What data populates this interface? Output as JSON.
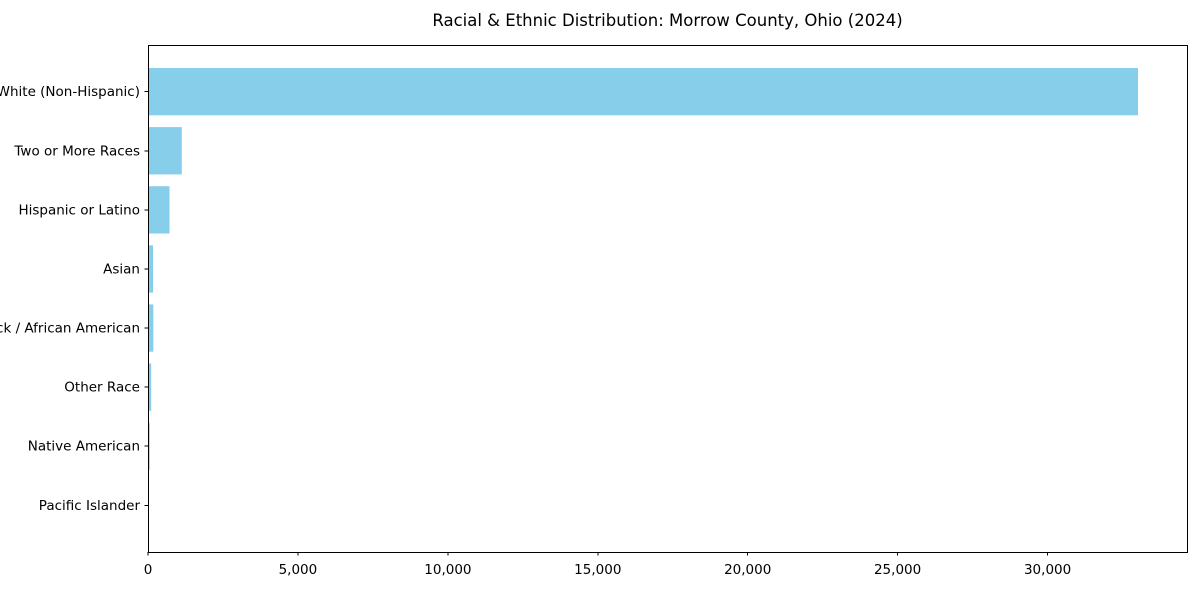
{
  "chart_data": {
    "type": "bar",
    "orientation": "horizontal",
    "title": "Racial & Ethnic Distribution: Morrow County, Ohio (2024)",
    "categories": [
      "White (Non-Hispanic)",
      "Two or More Races",
      "Hispanic or Latino",
      "Asian",
      "Black / African American",
      "Other Race",
      "Native American",
      "Pacific Islander"
    ],
    "values": [
      33000,
      1110,
      700,
      150,
      160,
      90,
      40,
      10
    ],
    "xlabel": "",
    "ylabel": "",
    "xlim": [
      0,
      34650
    ],
    "xticks": [
      0,
      5000,
      10000,
      15000,
      20000,
      25000,
      30000
    ],
    "grid": false,
    "legend": null,
    "colors": {
      "bar": "#87CEEB",
      "axis": "#000000",
      "text": "#000000",
      "background": "#FFFFFF"
    }
  }
}
